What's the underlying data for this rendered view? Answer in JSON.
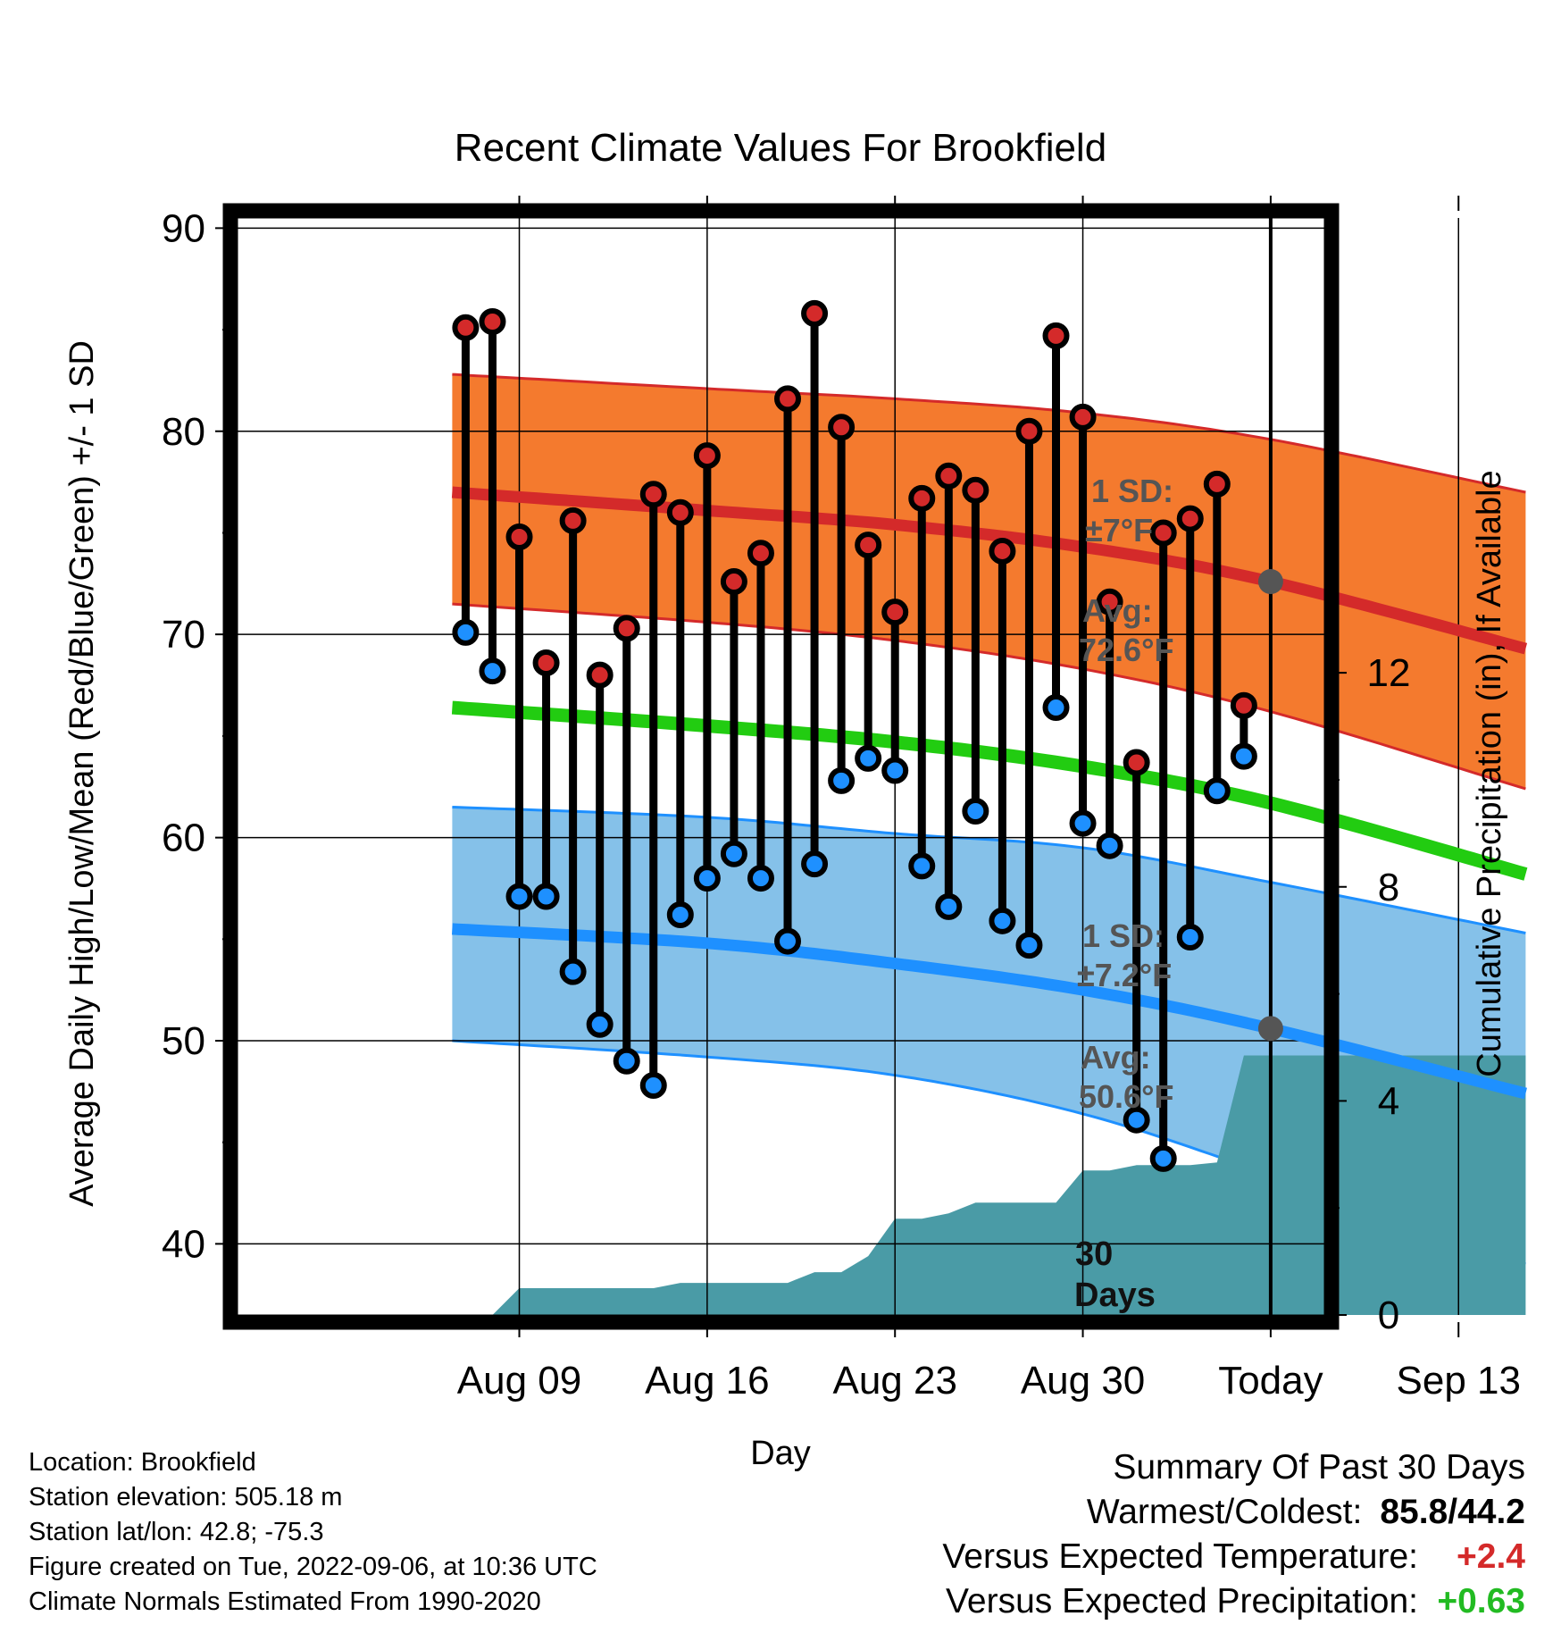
{
  "title": "Recent Climate Values For Brookfield",
  "xlabel": "Day",
  "ylabel_left": "Average Daily High/Low/Mean (Red/Blue/Green) +/- 1 SD",
  "ylabel_right": "Cumulative Precipitation (in), If Available",
  "info": {
    "location": "Location: Brookfield",
    "elevation": "Station elevation: 505.18 m",
    "latlon": "Station lat/lon: 42.8; -75.3",
    "created": "Figure created on Tue, 2022-09-06, at 10:36 UTC",
    "normals": "Climate Normals Estimated From 1990-2020"
  },
  "summary": {
    "heading": "Summary Of Past 30 Days",
    "warm_cold_label": "Warmest/Coldest:",
    "warm_cold_value": "85.8/44.2",
    "temp_label": "Versus Expected Temperature:",
    "temp_value": "+2.4",
    "precip_label": "Versus Expected Precipitation:",
    "precip_value": "+0.63"
  },
  "colors": {
    "high_band": "#f47a2e",
    "high_line": "#d42a2a",
    "low_band": "#85c1e9",
    "low_line": "#1e90ff",
    "mean_line": "#22cc11",
    "precip": "#4a9ba6",
    "high_dot": "#d42a2a",
    "low_dot": "#1e90ff",
    "temp_diff": "#d42a2a",
    "precip_diff": "#22bb22"
  },
  "chart_data": {
    "type": "line",
    "x_range": [
      -38.5,
      2
    ],
    "ylim": [
      36.5,
      90.5
    ],
    "y2lim": [
      0,
      20.5
    ],
    "grid": true,
    "y_ticks": [
      "40",
      "50",
      "60",
      "70",
      "80",
      "90"
    ],
    "y2_ticks": [
      "0",
      "4",
      "8",
      "12"
    ],
    "x_ticks": [
      {
        "day": -28,
        "label": "Aug 09"
      },
      {
        "day": -21,
        "label": "Aug 16"
      },
      {
        "day": -14,
        "label": "Aug 23"
      },
      {
        "day": -7,
        "label": "Aug 30"
      },
      {
        "day": 0,
        "label": "Today"
      },
      {
        "day": 7,
        "label": "Sep 13"
      }
    ],
    "normals_days": [
      -30.5,
      -21,
      -14,
      -7,
      0,
      9.5
    ],
    "avg_high": [
      77.0,
      76.1,
      75.4,
      74.3,
      72.6,
      69.3
    ],
    "high_upper": [
      82.8,
      82.1,
      81.6,
      80.9,
      79.6,
      77.0
    ],
    "high_lower": [
      71.5,
      70.6,
      69.7,
      68.3,
      66.2,
      62.4
    ],
    "avg_mean": [
      66.4,
      65.5,
      64.7,
      63.5,
      61.7,
      58.2
    ],
    "avg_low": [
      55.5,
      54.8,
      53.8,
      52.5,
      50.6,
      47.4
    ],
    "low_upper": [
      61.5,
      61.0,
      60.2,
      59.5,
      57.8,
      55.3
    ],
    "low_lower": [
      50.0,
      49.2,
      48.3,
      46.4,
      43.4,
      39.0
    ],
    "series": [
      {
        "name": "High",
        "days": [
          -30,
          -29,
          -28,
          -27,
          -26,
          -25,
          -24,
          -23,
          -22,
          -21,
          -20,
          -19,
          -18,
          -17,
          -16,
          -15,
          -14,
          -13,
          -12,
          -11,
          -10,
          -9,
          -8,
          -7,
          -6,
          -5,
          -4,
          -3,
          -2,
          -1
        ],
        "values": [
          85.1,
          85.4,
          74.8,
          68.6,
          75.6,
          68.0,
          70.3,
          76.9,
          76.0,
          78.8,
          72.6,
          74.0,
          81.6,
          85.8,
          80.2,
          74.4,
          71.1,
          76.7,
          77.8,
          77.1,
          74.1,
          80.0,
          84.7,
          80.7,
          71.6,
          63.7,
          75.0,
          75.7,
          77.4,
          66.5
        ]
      },
      {
        "name": "Low",
        "days": [
          -30,
          -29,
          -28,
          -27,
          -26,
          -25,
          -24,
          -23,
          -22,
          -21,
          -20,
          -19,
          -18,
          -17,
          -16,
          -15,
          -14,
          -13,
          -12,
          -11,
          -10,
          -9,
          -8,
          -7,
          -6,
          -5,
          -4,
          -3,
          -2,
          -1
        ],
        "values": [
          70.1,
          68.2,
          57.1,
          57.1,
          53.4,
          50.8,
          49.0,
          47.8,
          56.2,
          58.0,
          59.2,
          58.0,
          54.9,
          58.7,
          62.8,
          63.9,
          63.3,
          58.6,
          56.6,
          61.3,
          55.9,
          54.7,
          66.4,
          60.7,
          59.6,
          46.1,
          44.2,
          55.1,
          62.3,
          64.0
        ]
      },
      {
        "name": "Precipitation",
        "days": [
          -30,
          -29,
          -28,
          -27,
          -26,
          -25,
          -24,
          -23,
          -22,
          -21,
          -20,
          -19,
          -18,
          -17,
          -16,
          -15,
          -14,
          -13,
          -12,
          -11,
          -10,
          -9,
          -8,
          -7,
          -6,
          -5,
          -4,
          -3,
          -2,
          -1,
          0,
          9.5
        ],
        "values": [
          0,
          0,
          0.5,
          0.5,
          0.5,
          0.5,
          0.5,
          0.5,
          0.6,
          0.6,
          0.6,
          0.6,
          0.6,
          0.8,
          0.8,
          1.1,
          1.8,
          1.8,
          1.9,
          2.1,
          2.1,
          2.1,
          2.1,
          2.7,
          2.7,
          2.8,
          2.8,
          2.8,
          2.85,
          4.85,
          4.85,
          4.85
        ]
      }
    ],
    "annotations": {
      "high_sd_line1": "1 SD:",
      "high_sd_line2": "±7°F",
      "high_avg_line1": "Avg:",
      "high_avg_line2": "72.6°F",
      "low_sd_line1": "1 SD:",
      "low_sd_line2": "±7.2°F",
      "low_avg_line1": "Avg:",
      "low_avg_line2": "50.6°F",
      "days_line1": "30",
      "days_line2": "Days"
    }
  }
}
